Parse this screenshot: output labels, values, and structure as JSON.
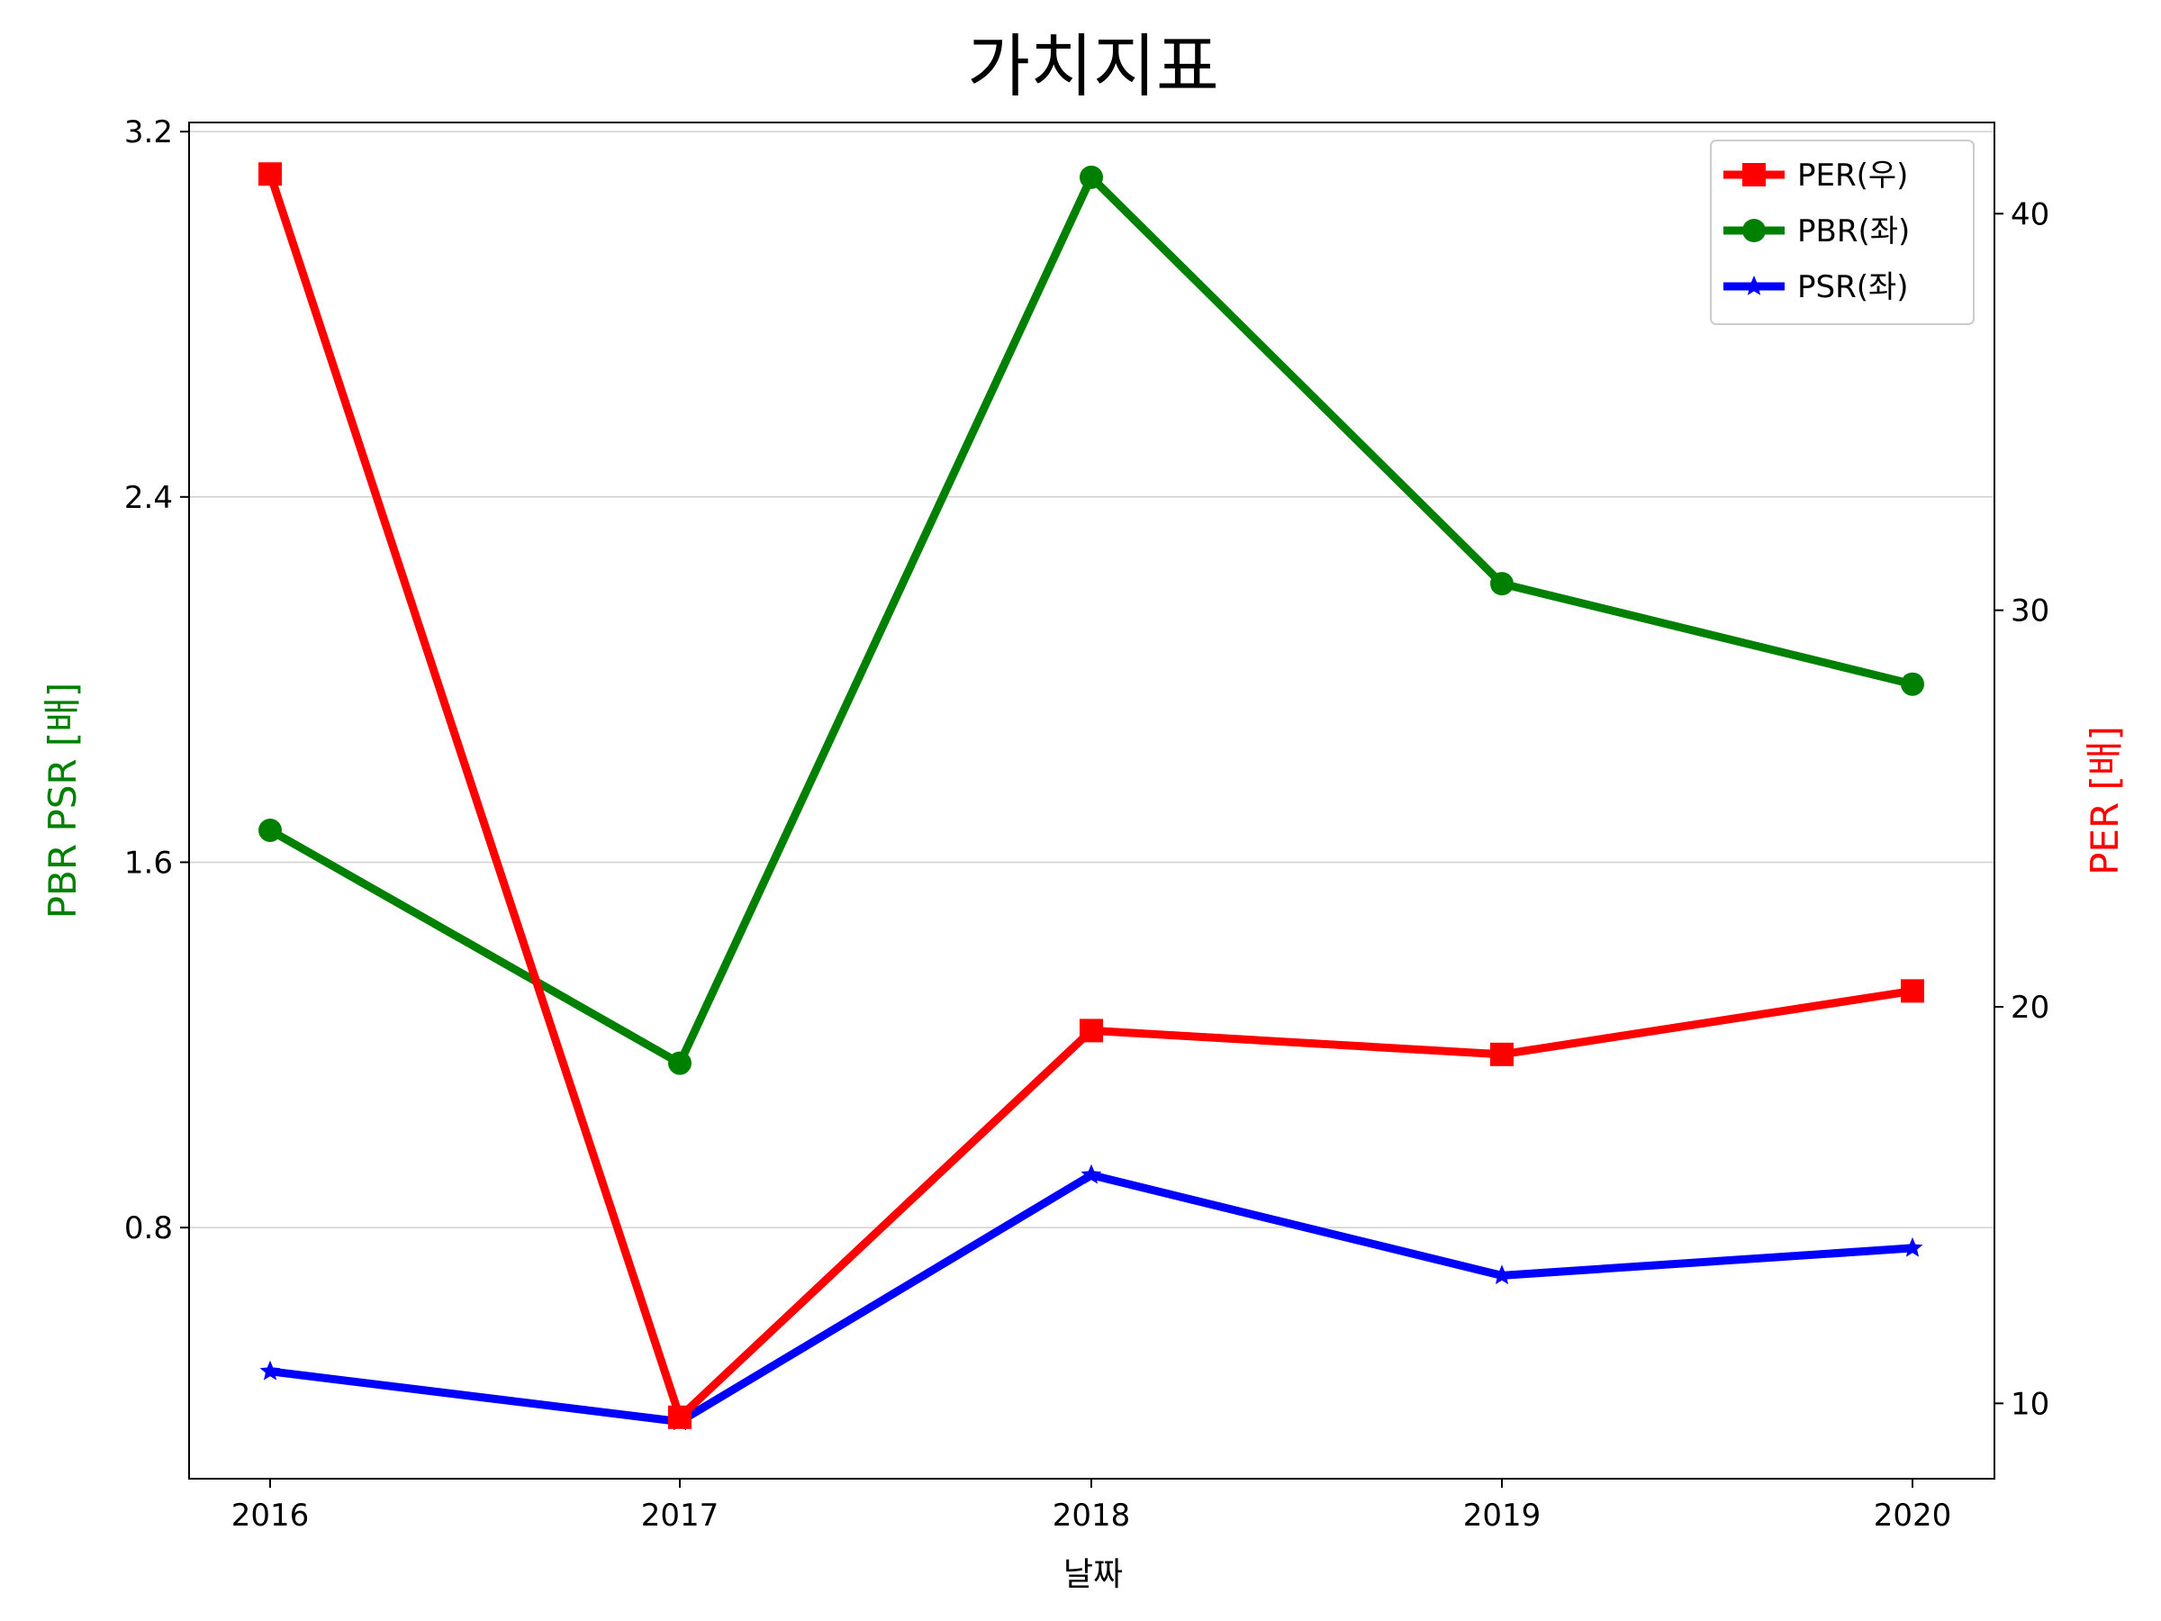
{
  "colors": {
    "per": "#ff0000",
    "pbr": "#008000",
    "psr": "#0000ff",
    "grid": "#d0d0d0",
    "axis": "#000000"
  },
  "chart_data": {
    "type": "line",
    "title": "가치지표",
    "xlabel": "날짜",
    "ylabel_left": "PBR PSR [배]",
    "ylabel_right": "PER [배]",
    "categories": [
      "2016",
      "2017",
      "2018",
      "2019",
      "2020"
    ],
    "yleft_ticks": [
      "0.8",
      "1.6",
      "2.4",
      "3.2"
    ],
    "yright_ticks": [
      "10",
      "20",
      "30",
      "40"
    ],
    "yleft_lim": [
      0.25,
      3.22
    ],
    "yright_lim": [
      8.1,
      42.3
    ],
    "grid": "horizontal, left axis",
    "legend_position": "top-right",
    "series": [
      {
        "name": "PER(우)",
        "axis": "right",
        "marker": "square",
        "color": "#ff0000",
        "values": [
          41.0,
          9.65,
          19.4,
          18.8,
          20.4
        ]
      },
      {
        "name": "PBR(좌)",
        "axis": "left",
        "marker": "circle",
        "color": "#008000",
        "values": [
          1.67,
          1.16,
          3.1,
          2.21,
          1.99
        ]
      },
      {
        "name": "PSR(좌)",
        "axis": "left",
        "marker": "star",
        "color": "#0000ff",
        "values": [
          0.485,
          0.375,
          0.915,
          0.695,
          0.755
        ]
      }
    ]
  }
}
